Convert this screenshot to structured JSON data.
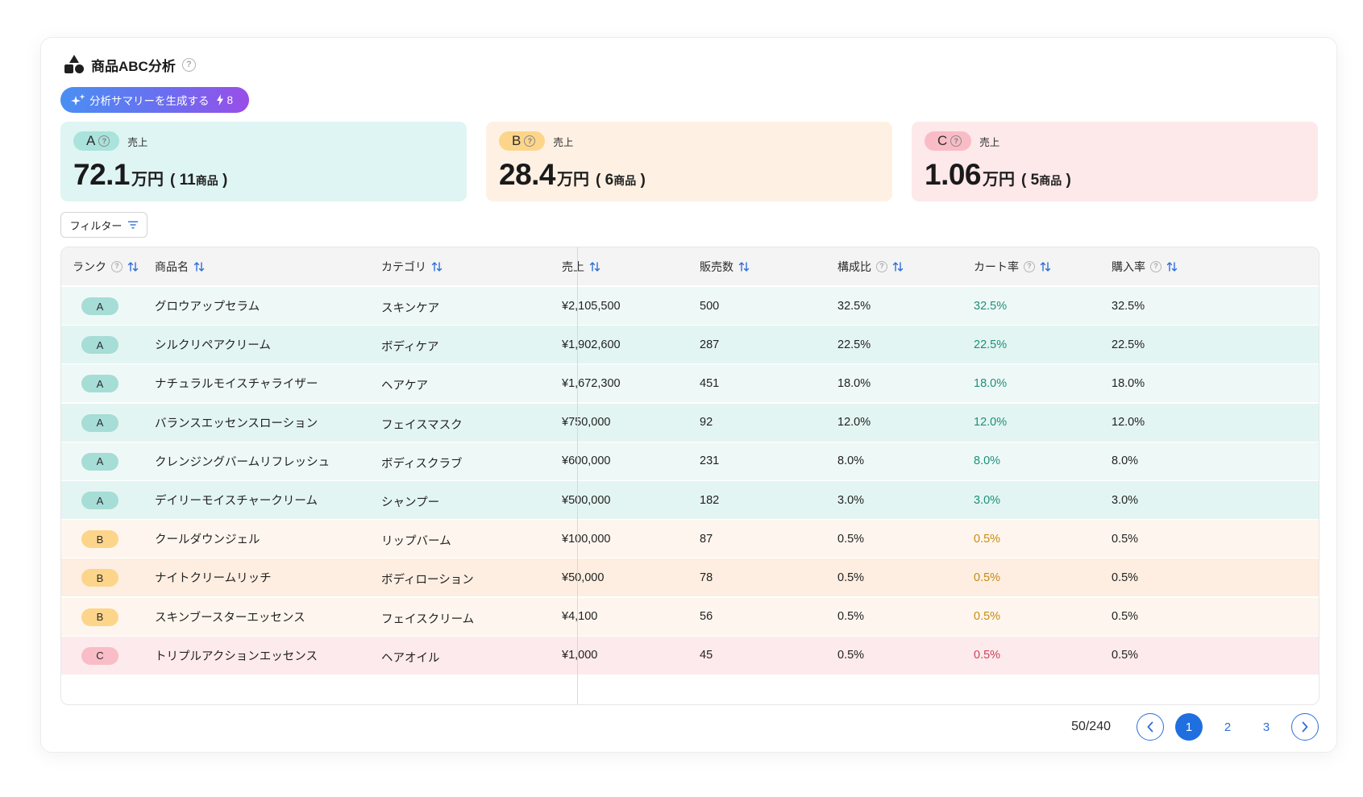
{
  "header": {
    "title": "商品ABC分析",
    "help": "?"
  },
  "ai_button": {
    "label": "分析サマリーを生成する",
    "credits": "8"
  },
  "summary": [
    {
      "rank": "A",
      "label": "売上",
      "value": "72.1",
      "unit": "万円",
      "count_open": "(",
      "count": "11",
      "count_unit": "商品",
      "count_close": ")"
    },
    {
      "rank": "B",
      "label": "売上",
      "value": "28.4",
      "unit": "万円",
      "count_open": "(",
      "count": "6",
      "count_unit": "商品",
      "count_close": ")"
    },
    {
      "rank": "C",
      "label": "売上",
      "value": "1.06",
      "unit": "万円",
      "count_open": "(",
      "count": "5",
      "count_unit": "商品",
      "count_close": ")"
    }
  ],
  "filter": {
    "label": "フィルター"
  },
  "table": {
    "columns": [
      "ランク",
      "商品名",
      "カテゴリ",
      "売上",
      "販売数",
      "構成比",
      "カート率",
      "購入率"
    ],
    "rows": [
      {
        "rank": "A",
        "name": "グロウアップセラム",
        "category": "スキンケア",
        "sales": "¥2,105,500",
        "qty": "500",
        "share": "32.5%",
        "cart": "32.5%",
        "purchase": "32.5%"
      },
      {
        "rank": "A",
        "name": "シルクリペアクリーム",
        "category": "ボディケア",
        "sales": "¥1,902,600",
        "qty": "287",
        "share": "22.5%",
        "cart": "22.5%",
        "purchase": "22.5%"
      },
      {
        "rank": "A",
        "name": "ナチュラルモイスチャライザー",
        "category": "ヘアケア",
        "sales": "¥1,672,300",
        "qty": "451",
        "share": "18.0%",
        "cart": "18.0%",
        "purchase": "18.0%"
      },
      {
        "rank": "A",
        "name": "バランスエッセンスローション",
        "category": "フェイスマスク",
        "sales": "¥750,000",
        "qty": "92",
        "share": "12.0%",
        "cart": "12.0%",
        "purchase": "12.0%"
      },
      {
        "rank": "A",
        "name": "クレンジングバームリフレッシュ",
        "category": "ボディスクラブ",
        "sales": "¥600,000",
        "qty": "231",
        "share": "8.0%",
        "cart": "8.0%",
        "purchase": "8.0%"
      },
      {
        "rank": "A",
        "name": "デイリーモイスチャークリーム",
        "category": "シャンプー",
        "sales": "¥500,000",
        "qty": "182",
        "share": "3.0%",
        "cart": "3.0%",
        "purchase": "3.0%"
      },
      {
        "rank": "B",
        "name": "クールダウンジェル",
        "category": "リップバーム",
        "sales": "¥100,000",
        "qty": "87",
        "share": "0.5%",
        "cart": "0.5%",
        "purchase": "0.5%"
      },
      {
        "rank": "B",
        "name": "ナイトクリームリッチ",
        "category": "ボディローション",
        "sales": "¥50,000",
        "qty": "78",
        "share": "0.5%",
        "cart": "0.5%",
        "purchase": "0.5%"
      },
      {
        "rank": "B",
        "name": "スキンブースターエッセンス",
        "category": "フェイスクリーム",
        "sales": "¥4,100",
        "qty": "56",
        "share": "0.5%",
        "cart": "0.5%",
        "purchase": "0.5%"
      },
      {
        "rank": "C",
        "name": "トリプルアクションエッセンス",
        "category": "ヘアオイル",
        "sales": "¥1,000",
        "qty": "45",
        "share": "0.5%",
        "cart": "0.5%",
        "purchase": "0.5%"
      }
    ]
  },
  "pagination": {
    "total": "50/240",
    "pages": [
      "1",
      "2",
      "3"
    ],
    "current": "1"
  },
  "colors": {
    "accent": "#1f6fe0",
    "rank_a": "#a6ddd6",
    "rank_b": "#fdd58a",
    "rank_c": "#f9bdc7"
  }
}
